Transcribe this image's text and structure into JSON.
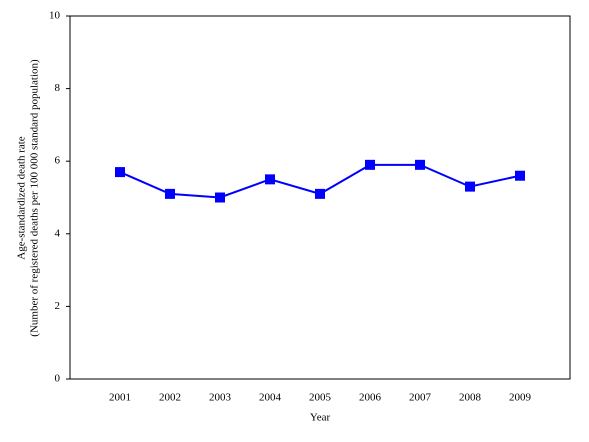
{
  "chart_data": {
    "type": "line",
    "x_label": "Year",
    "y_label": [
      "Age-standardized death rate",
      "(Number of registered deaths per 100 000 standard population)"
    ],
    "categories": [
      "2001",
      "2002",
      "2003",
      "2004",
      "2005",
      "2006",
      "2007",
      "2008",
      "2009"
    ],
    "series": [
      {
        "color": "#0000ff",
        "values": [
          5.7,
          5.1,
          5.0,
          5.5,
          5.1,
          5.9,
          5.9,
          5.3,
          5.6
        ]
      }
    ],
    "ylim": [
      0,
      10
    ],
    "yticks": [
      0,
      2,
      4,
      6,
      8,
      10
    ],
    "grid": false
  }
}
